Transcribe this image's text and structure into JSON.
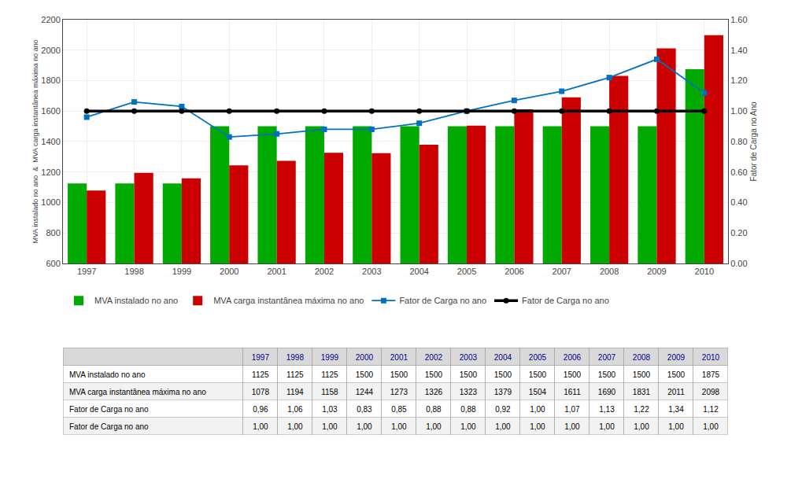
{
  "chart_data": {
    "type": "bar",
    "categories": [
      "1997",
      "1998",
      "1999",
      "2000",
      "2001",
      "2002",
      "2003",
      "2004",
      "2005",
      "2006",
      "2007",
      "2008",
      "2009",
      "2010"
    ],
    "series": [
      {
        "name": "MVA instalado no ano",
        "type": "bar",
        "color": "#00AA00",
        "values": [
          1125,
          1125,
          1125,
          1500,
          1500,
          1500,
          1500,
          1500,
          1500,
          1500,
          1500,
          1500,
          1500,
          1875
        ]
      },
      {
        "name": "MVA carga instantânea máxima no ano",
        "type": "bar",
        "color": "#CC0000",
        "values": [
          1078,
          1194,
          1158,
          1244,
          1273,
          1326,
          1323,
          1379,
          1504,
          1611,
          1690,
          1831,
          2011,
          2098
        ]
      },
      {
        "name": "Fator de Carga no ano",
        "type": "line",
        "axis": "y2",
        "color": "#0070C0",
        "marker": "square",
        "values": [
          0.96,
          1.06,
          1.03,
          0.83,
          0.85,
          0.88,
          0.88,
          0.92,
          1.0,
          1.07,
          1.13,
          1.22,
          1.34,
          1.12
        ],
        "value_labels": [
          "0,96",
          "1,06",
          "1,03",
          "0,83",
          "0,85",
          "0,88",
          "0,88",
          "0,92",
          "1,00",
          "1,07",
          "1,13",
          "1,22",
          "1,34",
          "1,12"
        ]
      },
      {
        "name": "Fator de Carga no ano",
        "type": "line",
        "axis": "y2",
        "color": "#000000",
        "marker": "circle",
        "values": [
          1.0,
          1.0,
          1.0,
          1.0,
          1.0,
          1.0,
          1.0,
          1.0,
          1.0,
          1.0,
          1.0,
          1.0,
          1.0,
          1.0
        ],
        "value_labels": [
          "1,00",
          "1,00",
          "1,00",
          "1,00",
          "1,00",
          "1,00",
          "1,00",
          "1,00",
          "1,00",
          "1,00",
          "1,00",
          "1,00",
          "1,00",
          "1,00"
        ]
      }
    ],
    "ylabel": "MVA instalado no ano  &  MVA carga instantânea máxima no ano",
    "y2label": "Fator de Carga no Ano",
    "ylim": [
      600,
      2200
    ],
    "yticks": [
      600,
      800,
      1000,
      1200,
      1400,
      1600,
      1800,
      2000,
      2200
    ],
    "y2lim": [
      0.0,
      1.6
    ],
    "y2ticks": [
      {
        "value": 0.0,
        "label": "0.00"
      },
      {
        "value": 0.2,
        "label": "0.20"
      },
      {
        "value": 0.4,
        "label": "0.40"
      },
      {
        "value": 0.6,
        "label": "0.60"
      },
      {
        "value": 0.8,
        "label": "0.80"
      },
      {
        "value": 1.0,
        "label": "1.00"
      },
      {
        "value": 1.2,
        "label": "1.20"
      },
      {
        "value": 1.4,
        "label": "1.40"
      },
      {
        "value": 1.6,
        "label": "1.60"
      }
    ],
    "grid": true,
    "legend": "bottom"
  }
}
